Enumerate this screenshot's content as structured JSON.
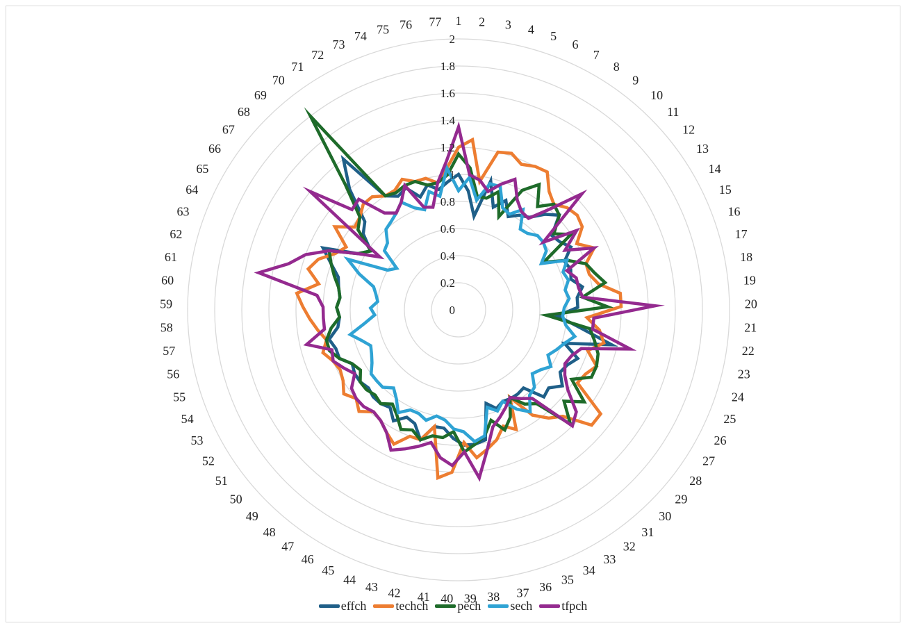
{
  "chart_data": {
    "type": "radar",
    "title": "",
    "categories": [
      "1",
      "2",
      "3",
      "4",
      "5",
      "6",
      "7",
      "8",
      "9",
      "10",
      "11",
      "12",
      "13",
      "14",
      "15",
      "16",
      "17",
      "18",
      "19",
      "20",
      "21",
      "22",
      "23",
      "24",
      "25",
      "26",
      "27",
      "28",
      "29",
      "30",
      "31",
      "32",
      "33",
      "34",
      "35",
      "36",
      "37",
      "38",
      "39",
      "40",
      "41",
      "42",
      "43",
      "44",
      "45",
      "46",
      "47",
      "48",
      "49",
      "50",
      "51",
      "52",
      "53",
      "54",
      "55",
      "56",
      "57",
      "58",
      "59",
      "60",
      "61",
      "62",
      "63",
      "64",
      "65",
      "66",
      "67",
      "68",
      "69",
      "70",
      "71",
      "72",
      "73",
      "74",
      "75",
      "76",
      "77"
    ],
    "radial_ticks": [
      "0",
      "0.2",
      "0.4",
      "0.6",
      "0.8",
      "1",
      "1.2",
      "1.4",
      "1.6",
      "1.8",
      "2"
    ],
    "rlim": [
      0,
      2
    ],
    "grid": true,
    "legend_position": "bottom",
    "series": [
      {
        "name": "effch",
        "color": "#1f5f88",
        "values": [
          1.0,
          0.88,
          0.7,
          0.98,
          0.8,
          0.88,
          0.78,
          0.83,
          0.86,
          0.95,
          1.02,
          0.88,
          0.9,
          0.95,
          0.86,
          0.88,
          0.86,
          0.93,
          0.88,
          0.88,
          0.73,
          0.9,
          1.16,
          0.82,
          0.95,
          0.9,
          0.88,
          0.95,
          0.88,
          0.9,
          0.75,
          0.76,
          0.76,
          0.75,
          0.78,
          0.72,
          0.98,
          1.0,
          1.0,
          0.95,
          0.88,
          0.88,
          1.0,
          0.9,
          0.88,
          0.95,
          0.88,
          0.9,
          0.9,
          0.88,
          0.9,
          0.9,
          0.88,
          0.95,
          0.95,
          0.98,
          0.9,
          0.88,
          0.9,
          0.88,
          0.9,
          0.92,
          1.0,
          1.1,
          0.85,
          0.78,
          0.9,
          0.95,
          1.2,
          1.4,
          1.0,
          0.95,
          0.98,
          0.88,
          0.95,
          0.9,
          0.95
        ]
      },
      {
        "name": "techch",
        "color": "#ed7d31",
        "values": [
          1.2,
          1.26,
          0.96,
          1.2,
          1.22,
          1.17,
          1.2,
          1.21,
          1.1,
          1.05,
          1.1,
          1.12,
          1.1,
          1.0,
          1.1,
          1.0,
          1.0,
          1.05,
          1.2,
          1.2,
          0.95,
          1.05,
          1.1,
          1.0,
          1.1,
          1.05,
          1.03,
          1.3,
          1.3,
          1.1,
          1.04,
          0.95,
          0.75,
          0.98,
          0.92,
          1.0,
          1.05,
          1.1,
          0.98,
          1.2,
          1.25,
          0.88,
          1.0,
          1.0,
          1.1,
          1.05,
          1.0,
          0.98,
          1.05,
          1.0,
          1.05,
          1.0,
          0.98,
          1.0,
          1.05,
          1.0,
          1.05,
          1.1,
          1.15,
          1.2,
          1.05,
          1.15,
          1.1,
          1.0,
          0.95,
          1.1,
          0.98,
          1.0,
          1.05,
          1.05,
          1.0,
          1.0,
          1.05,
          1.0,
          1.0,
          0.95,
          1.05
        ]
      },
      {
        "name": "pech",
        "color": "#1e6b2a",
        "values": [
          1.15,
          1.05,
          0.85,
          0.85,
          0.92,
          0.75,
          1.0,
          1.1,
          0.96,
          1.05,
          1.02,
          0.9,
          1.0,
          0.72,
          0.88,
          1.0,
          1.04,
          1.1,
          0.92,
          1.1,
          0.65,
          0.98,
          1.03,
          1.08,
          1.1,
          1.1,
          0.98,
          1.15,
          1.03,
          1.18,
          0.9,
          0.85,
          0.75,
          0.88,
          0.95,
          0.85,
          0.95,
          1.0,
          1.05,
          0.9,
          0.95,
          0.95,
          1.0,
          0.95,
          0.98,
          0.9,
          0.85,
          0.9,
          0.88,
          0.9,
          0.9,
          0.85,
          0.88,
          0.95,
          1.0,
          1.0,
          0.95,
          0.88,
          0.9,
          0.88,
          0.9,
          0.95,
          1.0,
          1.05,
          0.85,
          0.78,
          0.95,
          1.0,
          1.25,
          1.8,
          1.0,
          0.98,
          1.0,
          1.0,
          0.95,
          0.95,
          1.0
        ]
      },
      {
        "name": "sech",
        "color": "#2fa3d4",
        "values": [
          0.88,
          0.98,
          0.82,
          0.96,
          0.96,
          0.82,
          0.8,
          0.88,
          0.75,
          0.76,
          0.8,
          0.8,
          0.78,
          0.7,
          0.88,
          0.82,
          0.84,
          0.8,
          0.82,
          0.78,
          0.77,
          0.8,
          0.88,
          0.82,
          0.78,
          0.74,
          0.8,
          0.75,
          0.72,
          0.8,
          0.82,
          0.92,
          0.85,
          0.75,
          0.8,
          0.75,
          0.95,
          0.98,
          0.9,
          0.88,
          0.82,
          0.8,
          0.85,
          0.82,
          0.82,
          0.88,
          0.8,
          0.75,
          0.8,
          0.8,
          0.8,
          0.75,
          0.72,
          0.7,
          0.75,
          0.82,
          0.7,
          0.62,
          0.65,
          0.6,
          0.62,
          0.65,
          0.78,
          0.9,
          0.6,
          0.55,
          0.7,
          0.72,
          0.8,
          0.82,
          0.85,
          0.9,
          0.82,
          0.78,
          0.9,
          0.85,
          1.05
        ]
      },
      {
        "name": "tfpch",
        "color": "#942a8f",
        "values": [
          1.35,
          1.0,
          0.97,
          0.9,
          0.98,
          1.05,
          0.92,
          0.86,
          0.85,
          1.0,
          1.25,
          0.8,
          1.05,
          0.9,
          1.1,
          0.85,
          0.9,
          0.9,
          0.92,
          1.45,
          1.0,
          1.0,
          1.3,
          0.95,
          0.9,
          0.88,
          0.92,
          1.0,
          1.15,
          1.2,
          0.85,
          0.8,
          0.75,
          0.8,
          0.85,
          0.9,
          1.05,
          1.25,
          1.05,
          1.15,
          1.1,
          1.0,
          1.05,
          1.1,
          1.15,
          1.05,
          1.0,
          0.98,
          1.0,
          1.0,
          0.98,
          0.9,
          0.95,
          1.0,
          0.98,
          1.15,
          1.0,
          1.0,
          1.0,
          1.05,
          1.5,
          1.3,
          1.2,
          1.05,
          0.85,
          0.7,
          1.4,
          1.08,
          1.1,
          0.9,
          0.85,
          0.9,
          1.0,
          0.8,
          0.78,
          0.95,
          1.1
        ]
      }
    ]
  }
}
